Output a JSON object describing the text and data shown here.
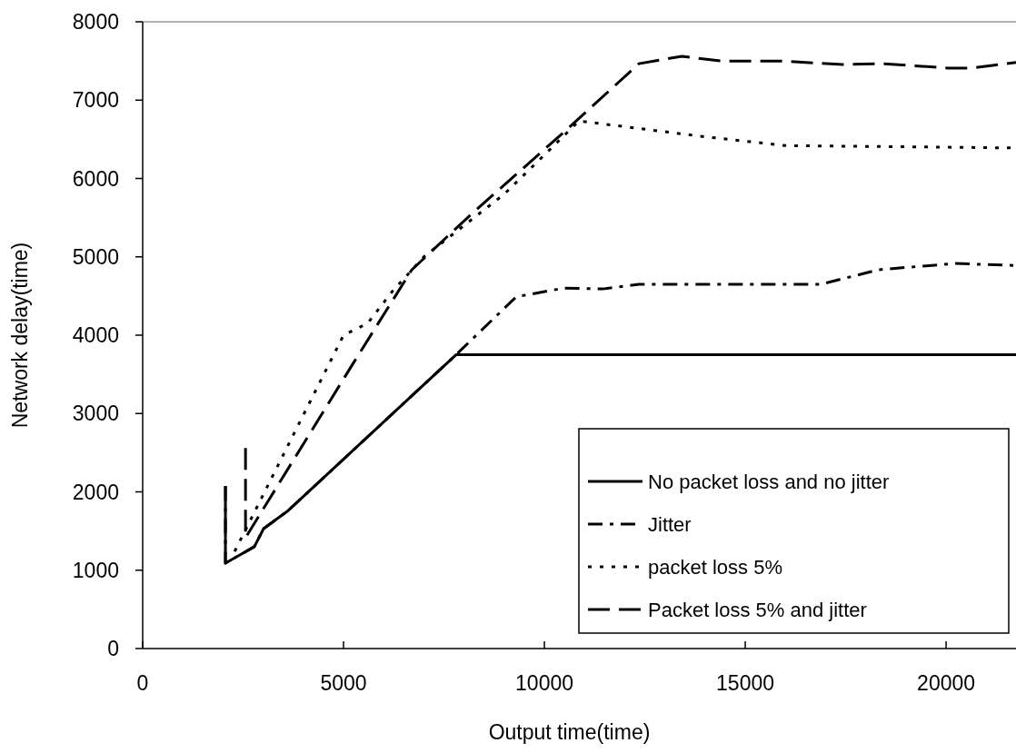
{
  "chart_data": {
    "type": "line",
    "xlabel": "Output time(time)",
    "ylabel": "Network delay(time)",
    "xlim": [
      0,
      21740
    ],
    "ylim": [
      0,
      8000
    ],
    "xticks": [
      0,
      5000,
      10000,
      15000,
      20000
    ],
    "yticks": [
      0,
      1000,
      2000,
      3000,
      4000,
      5000,
      6000,
      7000,
      8000
    ],
    "grid": false,
    "legend": "bottom right",
    "marker": "none",
    "series": [
      {
        "name": "No packet loss and no jitter",
        "color": "#000000",
        "line_style": "solid",
        "x": [
          2060,
          2060,
          2780,
          3010,
          3620,
          7800,
          21740
        ],
        "values": [
          2075,
          1090,
          1300,
          1530,
          1760,
          3750,
          3750
        ]
      },
      {
        "name": "Jitter",
        "color": "#000000",
        "line_style": "dashdot",
        "x": [
          2060,
          2060,
          2780,
          3010,
          3620,
          7800,
          9300,
          10475,
          11450,
          12350,
          13640,
          16880,
          18320,
          20200,
          21740
        ],
        "values": [
          2075,
          1090,
          1300,
          1530,
          1760,
          3750,
          4490,
          4600,
          4590,
          4650,
          4650,
          4650,
          4835,
          4915,
          4890
        ]
      },
      {
        "name": "packet loss 5%",
        "color": "#000000",
        "line_style": "dotted",
        "x": [
          2290,
          5000,
          5600,
          6200,
          7000,
          8000,
          9000,
          10000,
          10860,
          13870,
          16000,
          21740
        ],
        "values": [
          1240,
          4000,
          4150,
          4550,
          5000,
          5400,
          5800,
          6300,
          6735,
          6540,
          6420,
          6390
        ]
      },
      {
        "name": "Packet loss 5% and jitter",
        "color": "#000000",
        "line_style": "longdash",
        "x": [
          2560,
          2560,
          5270,
          6700,
          8150,
          10700,
          12350,
          13420,
          14390,
          15900,
          17420,
          18460,
          20050,
          20650,
          21740
        ],
        "values": [
          2560,
          1415,
          3665,
          4835,
          5530,
          6690,
          7465,
          7560,
          7500,
          7500,
          7455,
          7465,
          7410,
          7410,
          7480
        ]
      }
    ]
  }
}
